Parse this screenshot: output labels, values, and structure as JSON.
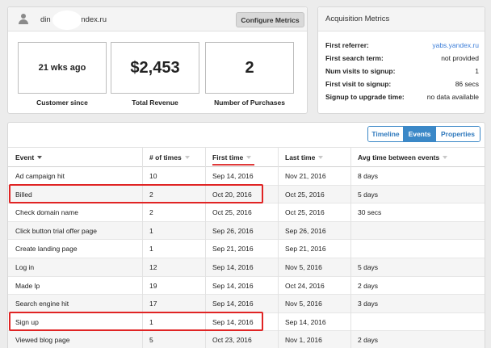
{
  "customer": {
    "email": "din   dv3@yandex.ru",
    "configure_label": "Configure Metrics",
    "metrics": [
      {
        "value": "21 wks ago",
        "label": "Customer since"
      },
      {
        "value": "$2,453",
        "label": "Total Revenue"
      },
      {
        "value": "2",
        "label": "Number of Purchases"
      }
    ]
  },
  "acquisition": {
    "title": "Acquisition Metrics",
    "rows": [
      {
        "key": "First referrer:",
        "value": "yabs.yandex.ru"
      },
      {
        "key": "First search term:",
        "value": "not provided"
      },
      {
        "key": "Num visits to signup:",
        "value": "1"
      },
      {
        "key": "First visit to signup:",
        "value": "86 secs"
      },
      {
        "key": "Signup to upgrade time:",
        "value": "no data available"
      }
    ]
  },
  "tabs": [
    "Timeline",
    "Events",
    "Properties"
  ],
  "active_tab": "Events",
  "accent_color": "#3b88c7",
  "highlight_color": "#e02424",
  "table": {
    "headers": [
      "Event",
      "# of times",
      "First time",
      "Last time",
      "Avg time between events"
    ],
    "rows": [
      [
        "Ad campaign hit",
        "10",
        "Sep 14, 2016",
        "Nov 21, 2016",
        "8 days"
      ],
      [
        "Billed",
        "2",
        "Oct 20, 2016",
        "Oct 25, 2016",
        "5 days"
      ],
      [
        "Check domain name",
        "2",
        "Oct 25, 2016",
        "Oct 25, 2016",
        "30 secs"
      ],
      [
        "Click button trial offer page",
        "1",
        "Sep 26, 2016",
        "Sep 26, 2016",
        ""
      ],
      [
        "Create landing page",
        "1",
        "Sep 21, 2016",
        "Sep 21, 2016",
        ""
      ],
      [
        "Log in",
        "12",
        "Sep 14, 2016",
        "Nov 5, 2016",
        "5 days"
      ],
      [
        "Made lp",
        "19",
        "Sep 14, 2016",
        "Oct 24, 2016",
        "2 days"
      ],
      [
        "Search engine hit",
        "17",
        "Sep 14, 2016",
        "Nov 5, 2016",
        "3 days"
      ],
      [
        "Sign up",
        "1",
        "Sep 14, 2016",
        "Sep 14, 2016",
        ""
      ],
      [
        "Viewed blog page",
        "5",
        "Oct 23, 2016",
        "Nov 1, 2016",
        "2 days"
      ]
    ],
    "highlighted_events": [
      "Billed",
      "Sign up"
    ]
  }
}
